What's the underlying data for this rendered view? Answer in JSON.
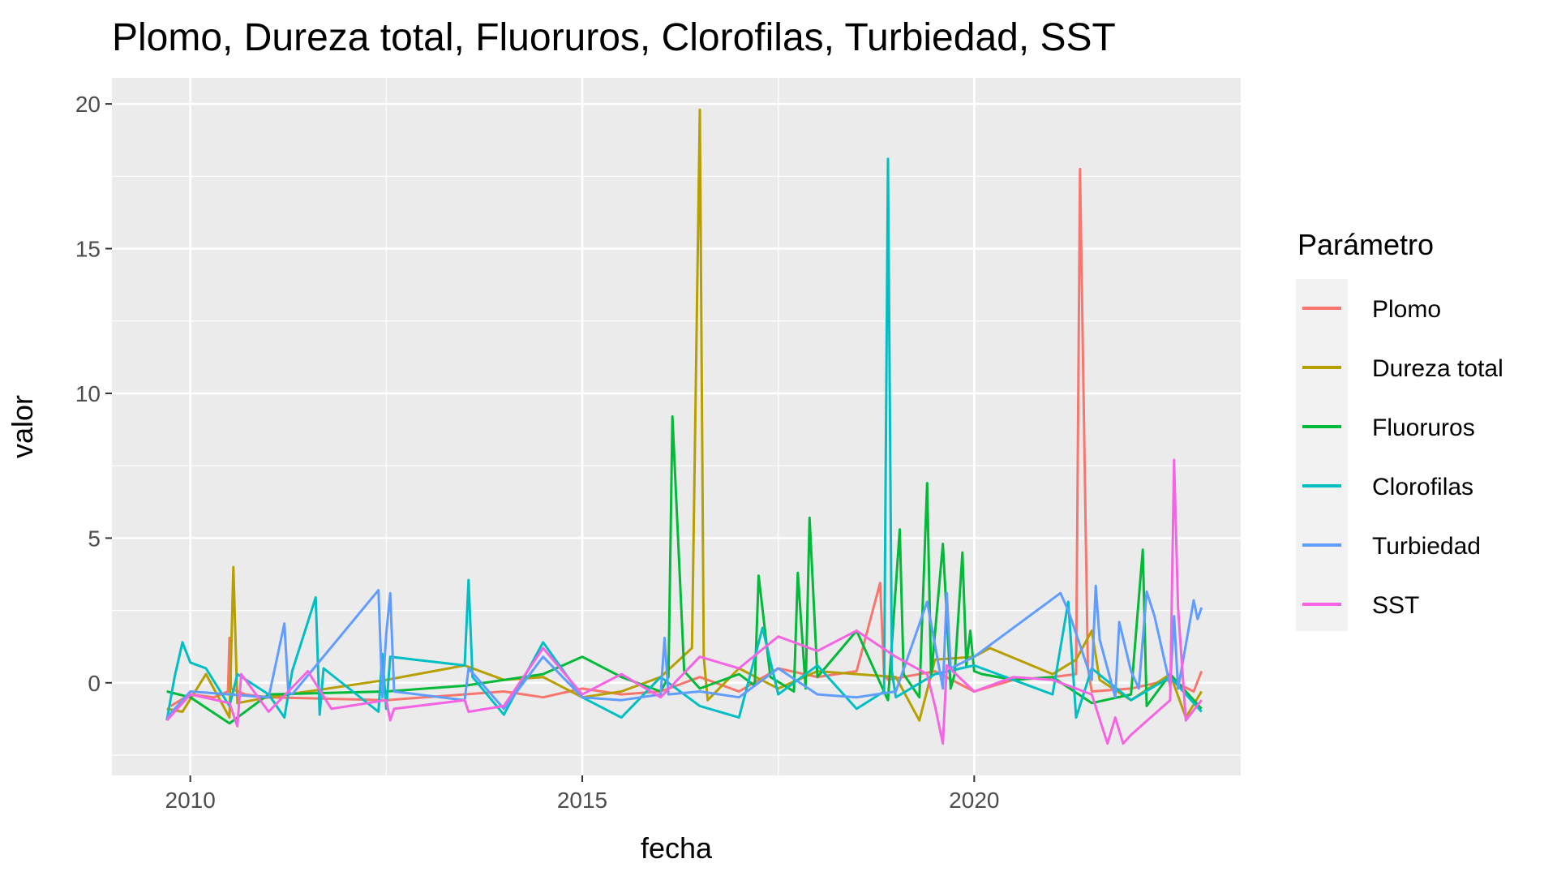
{
  "chart_data": {
    "type": "line",
    "title": "Plomo, Dureza total, Fluoruros, Clorofilas, Turbiedad, SST",
    "xlabel": "fecha",
    "ylabel": "valor",
    "x_ticks": [
      "2010",
      "2015",
      "2020"
    ],
    "y_ticks": [
      "0",
      "5",
      "10",
      "15",
      "20"
    ],
    "xlim": [
      2009.0,
      2023.4
    ],
    "ylim": [
      -3.2,
      20.9
    ],
    "grid": true,
    "legend_title": "Parámetro",
    "legend_position": "right",
    "series": [
      {
        "name": "Plomo",
        "color": "#F8766D",
        "x": [
          2009.75,
          2010.0,
          2010.3,
          2010.48,
          2010.5,
          2010.52,
          2010.7,
          2011.0,
          2012.5,
          2013.5,
          2014.0,
          2014.5,
          2015.0,
          2015.5,
          2016.0,
          2016.5,
          2017.0,
          2017.5,
          2018.0,
          2018.5,
          2018.8,
          2018.85,
          2018.9,
          2019.5,
          2020.0,
          2020.5,
          2021.0,
          2021.3,
          2021.35,
          2021.45,
          2021.5,
          2022.0,
          2022.5,
          2022.8,
          2022.9
        ],
        "y": [
          -0.8,
          -0.4,
          -0.5,
          -0.3,
          1.55,
          -0.2,
          -0.4,
          -0.5,
          -0.6,
          -0.4,
          -0.3,
          -0.5,
          -0.2,
          -0.4,
          -0.3,
          0.2,
          -0.3,
          0.5,
          0.2,
          0.4,
          3.45,
          0.3,
          0.1,
          0.4,
          -0.3,
          0.1,
          0.2,
          0.3,
          17.75,
          0.5,
          -0.3,
          -0.2,
          0.1,
          -0.3,
          0.4
        ]
      },
      {
        "name": "Dureza total",
        "color": "#B79F00",
        "x": [
          2009.7,
          2009.9,
          2010.2,
          2010.5,
          2010.55,
          2010.6,
          2011.0,
          2012.5,
          2013.5,
          2014.0,
          2014.5,
          2015.0,
          2015.5,
          2016.0,
          2016.4,
          2016.5,
          2016.55,
          2016.6,
          2017.0,
          2017.5,
          2018.0,
          2018.5,
          2019.0,
          2019.3,
          2019.5,
          2020.0,
          2020.2,
          2021.0,
          2021.3,
          2021.5,
          2021.6,
          2022.0,
          2022.5,
          2022.7,
          2022.9
        ],
        "y": [
          -0.9,
          -1.0,
          0.3,
          -1.2,
          4.0,
          -0.7,
          -0.5,
          0.1,
          0.6,
          0.1,
          0.2,
          -0.5,
          -0.3,
          0.2,
          1.2,
          19.8,
          0.9,
          -0.6,
          0.5,
          -0.2,
          0.4,
          0.3,
          0.2,
          -1.3,
          0.8,
          0.9,
          1.2,
          0.3,
          0.8,
          1.8,
          0.1,
          -0.6,
          0.3,
          -1.2,
          -0.3
        ]
      },
      {
        "name": "Fluoruros",
        "color": "#00BA38",
        "x": [
          2009.7,
          2010.0,
          2010.5,
          2011.0,
          2012.5,
          2013.5,
          2014.5,
          2015.0,
          2015.5,
          2016.0,
          2016.1,
          2016.15,
          2016.3,
          2016.5,
          2017.0,
          2017.2,
          2017.25,
          2017.4,
          2017.7,
          2017.75,
          2017.85,
          2017.9,
          2018.0,
          2018.5,
          2018.9,
          2019.05,
          2019.1,
          2019.3,
          2019.4,
          2019.45,
          2019.6,
          2019.7,
          2019.75,
          2019.85,
          2019.9,
          2019.95,
          2020.0,
          2020.1,
          2020.5,
          2021.0,
          2021.5,
          2022.0,
          2022.15,
          2022.2,
          2022.5,
          2022.9
        ],
        "y": [
          -0.3,
          -0.5,
          -1.4,
          -0.4,
          -0.3,
          -0.1,
          0.3,
          0.9,
          0.2,
          -0.3,
          0.2,
          9.2,
          0.4,
          -0.2,
          0.3,
          -0.1,
          3.7,
          0.2,
          -0.3,
          3.8,
          -0.2,
          5.7,
          0.2,
          1.8,
          -0.6,
          5.3,
          0.3,
          -0.5,
          6.9,
          0.2,
          4.8,
          -0.2,
          0.3,
          4.5,
          0.6,
          1.8,
          0.4,
          0.3,
          0.1,
          0.2,
          -0.7,
          -0.4,
          4.6,
          -0.8,
          0.3,
          -0.9
        ]
      },
      {
        "name": "Clorofilas",
        "color": "#00BFC4",
        "x": [
          2009.7,
          2009.8,
          2009.9,
          2010.0,
          2010.2,
          2010.5,
          2010.6,
          2011.0,
          2011.2,
          2011.3,
          2011.6,
          2011.65,
          2011.7,
          2012.4,
          2012.45,
          2012.5,
          2012.55,
          2013.5,
          2013.55,
          2013.6,
          2014.0,
          2014.5,
          2015.0,
          2015.5,
          2016.0,
          2016.5,
          2017.0,
          2017.3,
          2017.5,
          2018.0,
          2018.5,
          2018.85,
          2018.9,
          2018.95,
          2019.0,
          2019.5,
          2020.0,
          2021.0,
          2021.2,
          2021.3,
          2021.5,
          2022.0,
          2022.5,
          2022.9
        ],
        "y": [
          -1.3,
          0.2,
          1.4,
          0.7,
          0.5,
          -0.8,
          0.3,
          -0.4,
          -1.2,
          0.4,
          2.95,
          -1.1,
          0.5,
          -1.0,
          1.0,
          -0.9,
          0.9,
          0.6,
          3.55,
          0.2,
          -1.1,
          1.4,
          -0.5,
          -1.2,
          0.2,
          -0.8,
          -1.2,
          1.9,
          -0.4,
          0.6,
          -0.9,
          -0.3,
          18.1,
          0.4,
          -0.5,
          0.3,
          0.6,
          -0.4,
          2.8,
          -1.2,
          0.5,
          -0.6,
          0.2,
          -1.0
        ]
      },
      {
        "name": "Turbiedad",
        "color": "#619CFF",
        "x": [
          2009.7,
          2010.0,
          2010.5,
          2011.0,
          2011.2,
          2011.25,
          2011.3,
          2012.4,
          2012.45,
          2012.5,
          2012.55,
          2012.6,
          2013.5,
          2013.55,
          2014.0,
          2014.5,
          2015.0,
          2015.5,
          2016.0,
          2016.05,
          2016.1,
          2016.5,
          2017.0,
          2017.5,
          2018.0,
          2018.5,
          2019.0,
          2019.4,
          2019.6,
          2019.65,
          2019.7,
          2020.0,
          2021.1,
          2021.2,
          2021.5,
          2021.55,
          2021.6,
          2021.8,
          2021.85,
          2022.0,
          2022.1,
          2022.2,
          2022.3,
          2022.5,
          2022.55,
          2022.6,
          2022.8,
          2022.85,
          2022.9
        ],
        "y": [
          -1.2,
          -0.3,
          -0.4,
          -0.5,
          2.05,
          -0.3,
          -0.4,
          3.2,
          -0.5,
          1.7,
          3.1,
          -0.3,
          -0.6,
          0.5,
          -0.9,
          0.9,
          -0.5,
          -0.6,
          -0.4,
          1.55,
          -0.4,
          -0.3,
          -0.5,
          0.5,
          -0.4,
          -0.5,
          -0.3,
          2.8,
          -0.2,
          3.1,
          0.5,
          0.9,
          3.1,
          2.5,
          0.1,
          3.35,
          1.5,
          -0.5,
          2.1,
          0.4,
          -0.2,
          3.15,
          2.3,
          -0.1,
          2.3,
          -0.2,
          2.85,
          2.2,
          2.6
        ]
      },
      {
        "name": "SST",
        "color": "#F564E3",
        "x": [
          2009.7,
          2010.0,
          2010.5,
          2010.6,
          2010.65,
          2011.0,
          2011.5,
          2011.8,
          2012.5,
          2012.55,
          2012.6,
          2013.5,
          2013.55,
          2014.0,
          2014.5,
          2015.0,
          2015.5,
          2016.0,
          2016.5,
          2017.0,
          2017.5,
          2018.0,
          2018.5,
          2019.0,
          2019.4,
          2019.5,
          2019.6,
          2019.65,
          2020.0,
          2020.5,
          2021.0,
          2021.5,
          2021.7,
          2021.8,
          2021.9,
          2022.0,
          2022.5,
          2022.55,
          2022.6,
          2022.7,
          2022.9
        ],
        "y": [
          -1.3,
          -0.4,
          -0.7,
          -1.5,
          0.3,
          -1.0,
          0.4,
          -0.9,
          -0.6,
          -1.3,
          -0.9,
          -0.6,
          -1.0,
          -0.8,
          1.2,
          -0.4,
          0.3,
          -0.5,
          0.9,
          0.5,
          1.6,
          1.1,
          1.8,
          0.9,
          0.3,
          -0.8,
          -2.1,
          0.6,
          -0.3,
          0.2,
          0.1,
          -0.4,
          -2.1,
          -1.2,
          -2.1,
          -1.8,
          -0.6,
          7.7,
          2.6,
          -1.3,
          -0.6
        ]
      }
    ]
  }
}
